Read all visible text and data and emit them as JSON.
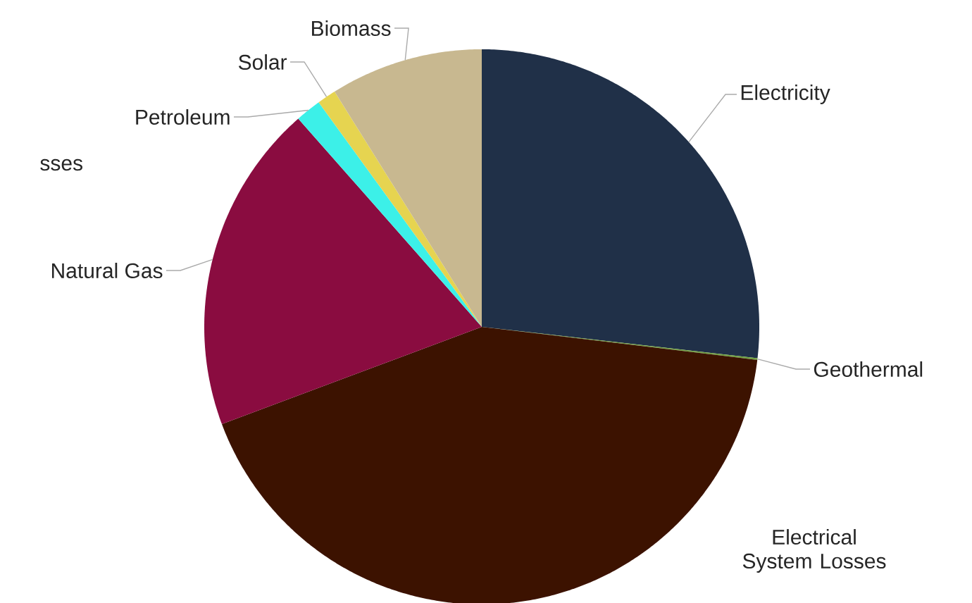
{
  "chart_data": {
    "type": "pie",
    "categories": [
      "Electricity",
      "Geothermal",
      "Electrical System Losses",
      "Natural Gas",
      "Petroleum",
      "Solar",
      "Biomass"
    ],
    "values": [
      26.8,
      0.1,
      42.4,
      19.2,
      1.5,
      1.1,
      8.9
    ],
    "colors": [
      "#203048",
      "#70a040",
      "#3c1200",
      "#8a0c40",
      "#3cf0e8",
      "#e6d450",
      "#c8b890"
    ],
    "annotations": [
      "sses"
    ]
  }
}
